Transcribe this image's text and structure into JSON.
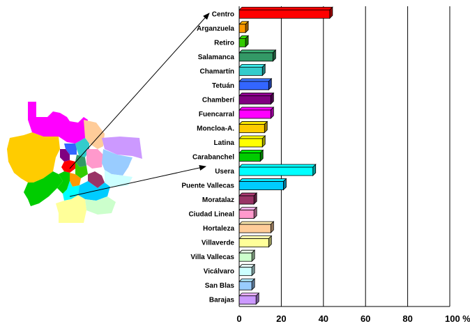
{
  "chart_data": {
    "type": "bar",
    "orientation": "horizontal",
    "categories": [
      "Centro",
      "Arganzuela",
      "Retiro",
      "Salamanca",
      "Chamartín",
      "Tetuán",
      "Chamberí",
      "Fuencarral",
      "Moncloa-A.",
      "Latina",
      "Carabanchel",
      "Usera",
      "Puente Vallecas",
      "Moratalaz",
      "Ciudad Lineal",
      "Hortaleza",
      "Villaverde",
      "Villa Vallecas",
      "Vicálvaro",
      "San Blas",
      "Barajas"
    ],
    "values": [
      43,
      3,
      3,
      16,
      11,
      14,
      15,
      15,
      12,
      11,
      10,
      35,
      21,
      7,
      7,
      15,
      14,
      6,
      6,
      6,
      8
    ],
    "bar_colors": [
      "#ff0000",
      "#ff9900",
      "#33cc00",
      "#339966",
      "#33cccc",
      "#3366ff",
      "#800080",
      "#ff00ff",
      "#ffcc00",
      "#ffff00",
      "#00cc00",
      "#00ffff",
      "#00ccff",
      "#993366",
      "#ff99cc",
      "#ffcc99",
      "#ffff99",
      "#ccffcc",
      "#ccffff",
      "#99ccff",
      "#cc99ff"
    ],
    "xaxis": {
      "ticks": [
        0,
        20,
        40,
        60,
        80,
        100
      ],
      "tick_labels": [
        "0",
        "20",
        "40",
        "60",
        "80",
        "100 %"
      ],
      "xlim": [
        0,
        100
      ]
    },
    "title": "",
    "xlabel": "",
    "ylabel": "",
    "grid": "vertical lines"
  },
  "map": {
    "arrows": [
      "Centro",
      "Usera"
    ]
  }
}
